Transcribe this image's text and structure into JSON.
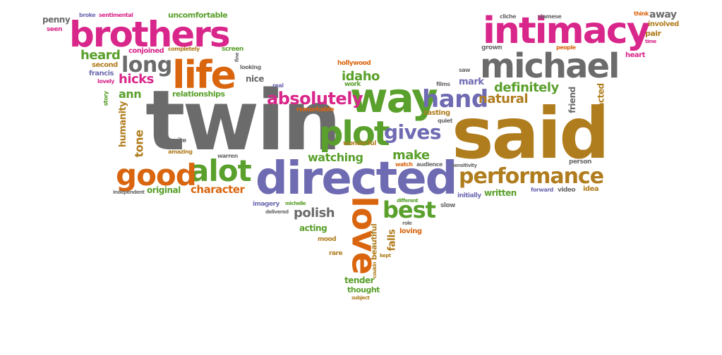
{
  "colors": {
    "pink": "#d9268a",
    "gray": "#6b6b6b",
    "orange": "#d9650f",
    "green": "#5aa02c",
    "purple": "#6f6bb2",
    "gold": "#b07d1e",
    "background": "#ffffff"
  },
  "words": {
    "twin": "twin",
    "said": "said",
    "directed": "directed",
    "brothers": "brothers",
    "intimacy": "intimacy",
    "michael": "michael",
    "life": "life",
    "way": "way",
    "plot": "plot",
    "love": "love",
    "hand": "hand",
    "alot": "alot",
    "good": "good",
    "performance": "performance",
    "absolutely": "absolutely",
    "long": "long",
    "gives": "gives",
    "best": "best",
    "hicks": "hicks",
    "heard": "heard",
    "idaho": "idaho",
    "natural": "natural",
    "definitely": "definitely",
    "watching": "watching",
    "make": "make",
    "polish": "polish",
    "character": "character",
    "humanity": "humanity",
    "tone": "tone",
    "ann": "ann",
    "relationships": "relationships",
    "falls": "falls",
    "beautiful": "beautiful",
    "acting": "acting",
    "original": "original",
    "written": "written",
    "tender": "tender",
    "thought": "thought",
    "mark": "mark",
    "friend": "friend",
    "acted": "acted",
    "penny": "penny",
    "seen": "seen",
    "broke": "broke",
    "sentimental": "sentimental",
    "uncomfortable": "uncomfortable",
    "conjoined": "conjoined",
    "completely": "completely",
    "screen": "screen",
    "second": "second",
    "francis": "francis",
    "lovely": "lovely",
    "story": "story",
    "nice": "nice",
    "looking": "looking",
    "fine": "fine",
    "real": "real",
    "hollywood": "hollywood",
    "work": "work",
    "remarkable": "remarkable",
    "casting": "casting",
    "quiet": "quiet",
    "films": "films",
    "saw": "saw",
    "grown": "grown",
    "cliche": "cliche",
    "siamese": "siamese",
    "think": "think",
    "away": "away",
    "involved": "involved",
    "pair": "pair",
    "time": "time",
    "people": "people",
    "heart": "heart",
    "quite": "quite",
    "amazing": "amazing",
    "warren": "warren",
    "wonderful": "wonderful",
    "watch": "watch",
    "audience": "audience",
    "sensitivity": "sensitivity",
    "person": "person",
    "independent": "independent",
    "initially": "initially",
    "forward": "forward",
    "video": "video",
    "idea": "idea",
    "imagery": "imagery",
    "michelle": "michelle",
    "delivered": "delivered",
    "different": "different",
    "role": "role",
    "slow": "slow",
    "loving": "loving",
    "mood": "mood",
    "rare": "rare",
    "couldn": "couldn",
    "kept": "kept",
    "subject": "subject"
  }
}
